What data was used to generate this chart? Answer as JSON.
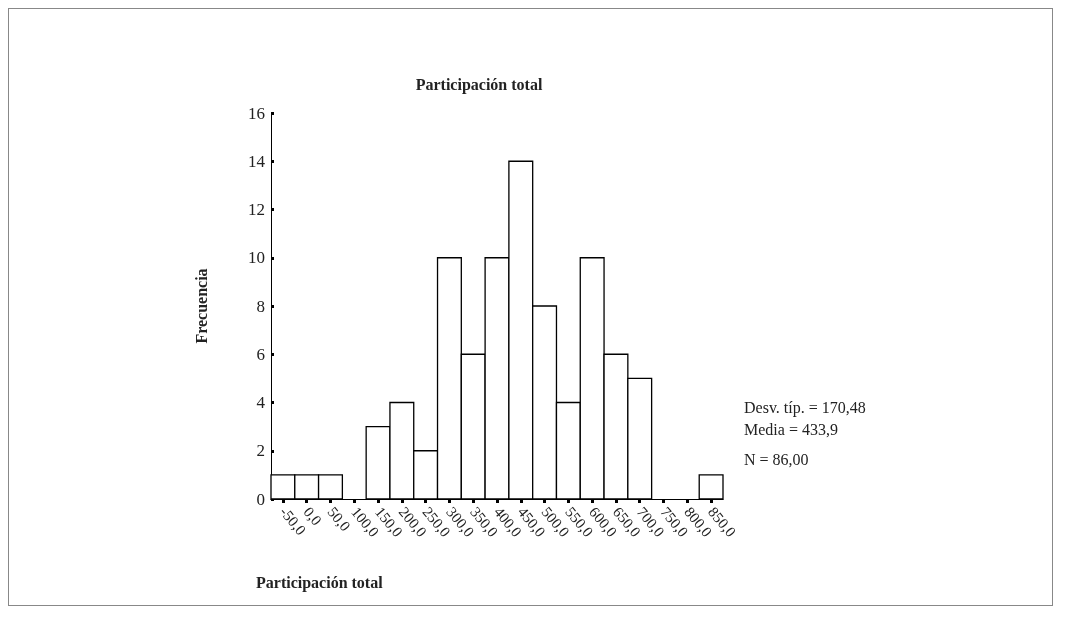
{
  "chart_data": {
    "type": "histogram",
    "title": "Participación total",
    "xlabel": "Participación total",
    "ylabel": "Frecuencia",
    "bins": [
      -75,
      -25,
      25,
      75,
      125,
      175,
      225,
      275,
      325,
      375,
      425,
      475,
      525,
      575,
      625,
      675,
      725,
      775,
      825,
      875
    ],
    "values": [
      1,
      1,
      1,
      0,
      3,
      4,
      2,
      10,
      6,
      10,
      14,
      8,
      4,
      10,
      6,
      5,
      0,
      0,
      1
    ],
    "color": "#ffffff",
    "xlim": [
      -75,
      875
    ],
    "xticks": [
      {
        "value": -50,
        "label": "-50,0"
      },
      {
        "value": 0,
        "label": "0,0"
      },
      {
        "value": 50,
        "label": "50,0"
      },
      {
        "value": 100,
        "label": "100,0"
      },
      {
        "value": 150,
        "label": "150,0"
      },
      {
        "value": 200,
        "label": "200,0"
      },
      {
        "value": 250,
        "label": "250,0"
      },
      {
        "value": 300,
        "label": "300,0"
      },
      {
        "value": 350,
        "label": "350,0"
      },
      {
        "value": 400,
        "label": "400,0"
      },
      {
        "value": 450,
        "label": "450,0"
      },
      {
        "value": 500,
        "label": "500,0"
      },
      {
        "value": 550,
        "label": "550,0"
      },
      {
        "value": 600,
        "label": "600,0"
      },
      {
        "value": 650,
        "label": "650,0"
      },
      {
        "value": 700,
        "label": "700,0"
      },
      {
        "value": 750,
        "label": "750,0"
      },
      {
        "value": 800,
        "label": "800,0"
      },
      {
        "value": 850,
        "label": "850,0"
      }
    ],
    "ylim": [
      0,
      16
    ],
    "yticks": [
      0,
      2,
      4,
      6,
      8,
      10,
      12,
      14,
      16
    ],
    "grid": false,
    "annotations": [
      "Desv. típ. = 170,48",
      "Media = 433,9",
      "N = 86,00"
    ]
  }
}
